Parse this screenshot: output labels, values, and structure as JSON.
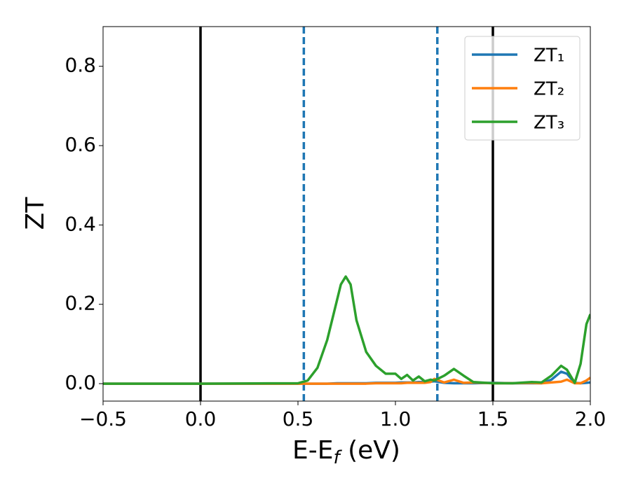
{
  "chart_data": {
    "type": "line",
    "ylabel": "ZT",
    "xlabel": {
      "text": "E-E",
      "subscript": "f",
      "suffix": " (eV)"
    },
    "x": [
      -0.5,
      0.0,
      0.5,
      0.55,
      0.6,
      0.65,
      0.7,
      0.72,
      0.745,
      0.77,
      0.8,
      0.85,
      0.9,
      0.95,
      1.0,
      1.03,
      1.06,
      1.09,
      1.12,
      1.15,
      1.18,
      1.2,
      1.25,
      1.3,
      1.35,
      1.4,
      1.5,
      1.6,
      1.7,
      1.75,
      1.8,
      1.85,
      1.88,
      1.92,
      1.95,
      1.98,
      2.0
    ],
    "series": [
      {
        "name": "ZT₁",
        "color": "#1f77b4",
        "values": [
          0,
          0,
          0,
          0,
          0,
          0,
          0.001,
          0.001,
          0.001,
          0.001,
          0.001,
          0.001,
          0.002,
          0.002,
          0.002,
          0.003,
          0.003,
          0.003,
          0.004,
          0.004,
          0.005,
          0.006,
          0.002,
          0.001,
          0.001,
          0.001,
          0.002,
          0.001,
          0.001,
          0.001,
          0.01,
          0.03,
          0.025,
          0.002,
          0.001,
          0.002,
          0.003
        ]
      },
      {
        "name": "ZT₂",
        "color": "#ff7f0e",
        "values": [
          0,
          0,
          0,
          0,
          0,
          0,
          0,
          0,
          0,
          0,
          0,
          0,
          0.001,
          0.001,
          0.001,
          0.001,
          0.002,
          0.002,
          0.002,
          0.002,
          0.004,
          0.012,
          0.003,
          0.01,
          0.002,
          0.003,
          0.001,
          0.001,
          0.002,
          0.001,
          0.003,
          0.005,
          0.01,
          0.001,
          0.001,
          0.008,
          0.015
        ]
      },
      {
        "name": "ZT₃",
        "color": "#2ca02c",
        "values": [
          0,
          0,
          0.001,
          0.008,
          0.04,
          0.11,
          0.21,
          0.25,
          0.27,
          0.25,
          0.16,
          0.08,
          0.045,
          0.025,
          0.025,
          0.012,
          0.022,
          0.008,
          0.018,
          0.006,
          0.01,
          0.008,
          0.02,
          0.037,
          0.02,
          0.004,
          0.001,
          0.001,
          0.004,
          0.003,
          0.02,
          0.045,
          0.035,
          0.002,
          0.05,
          0.15,
          0.175
        ]
      }
    ],
    "vlines": [
      {
        "x": 0.0,
        "color": "#000000",
        "dashed": false
      },
      {
        "x": 1.5,
        "color": "#000000",
        "dashed": false
      },
      {
        "x": 0.53,
        "color": "#1f77b4",
        "dashed": true
      },
      {
        "x": 1.215,
        "color": "#1f77b4",
        "dashed": true
      }
    ],
    "xlim": [
      -0.5,
      2.0
    ],
    "ylim": [
      -0.044,
      0.9
    ],
    "xticks": [
      {
        "value": -0.5,
        "label": "−0.5"
      },
      {
        "value": 0.0,
        "label": "0.0"
      },
      0.5,
      {
        "value": 1.0,
        "label": "1.0"
      },
      1.5,
      {
        "value": 2.0,
        "label": "2.0"
      }
    ],
    "yticks": [
      {
        "value": 0.0,
        "label": "0.0"
      },
      0.2,
      0.4,
      0.6,
      0.8
    ],
    "grid": false,
    "legend": "upper right"
  }
}
